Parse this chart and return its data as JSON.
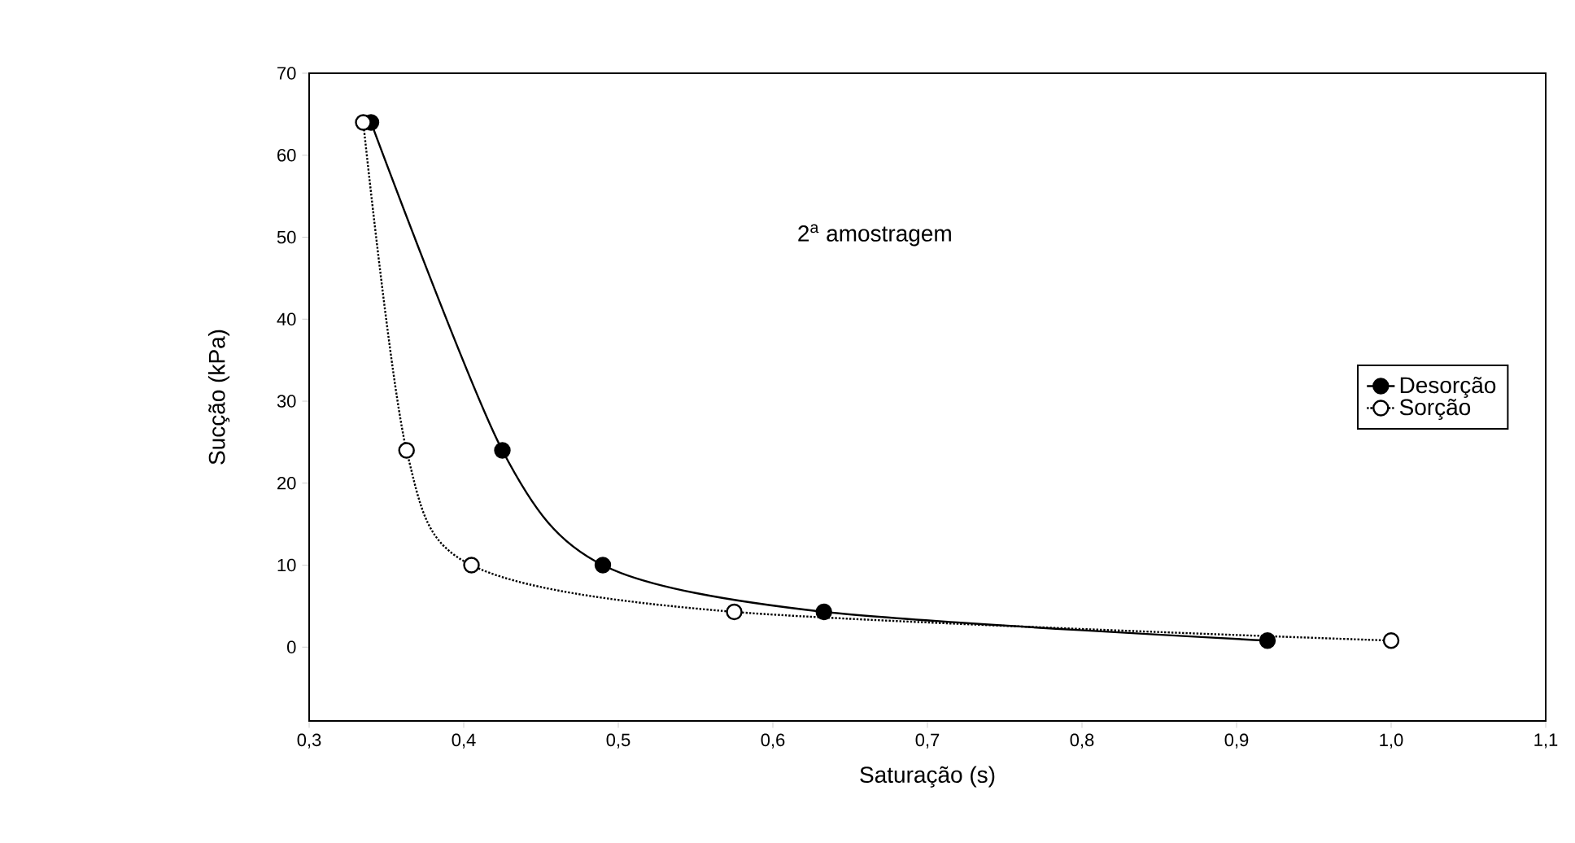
{
  "chart_data": {
    "type": "line",
    "xlabel": "Saturação (s)",
    "ylabel": "Sucção (kPa)",
    "annotations": [
      "2$^{a}$ amostragem"
    ],
    "xlim": [
      0.3,
      1.1
    ],
    "ylim": [
      -9,
      70
    ],
    "xticks": [
      {
        "value": 0.3,
        "label": "0,3"
      },
      {
        "value": 0.4,
        "label": "0,4"
      },
      {
        "value": 0.5,
        "label": "0,5"
      },
      {
        "value": 0.6,
        "label": "0,6"
      },
      {
        "value": 0.7,
        "label": "0,7"
      },
      {
        "value": 0.8,
        "label": "0,8"
      },
      {
        "value": 0.9,
        "label": "0,9"
      },
      {
        "value": 1.0,
        "label": "1,0"
      },
      {
        "value": 1.1,
        "label": "1,1"
      }
    ],
    "yticks": [
      0,
      10,
      20,
      30,
      40,
      50,
      60,
      70
    ],
    "grid": false,
    "legend": "right",
    "marker": "circle",
    "series": [
      {
        "name": "Desorção",
        "color": "#000000",
        "line_style": "solid",
        "x": [
          0.34,
          0.425,
          0.49,
          0.633,
          0.92
        ],
        "values": [
          64,
          24,
          10,
          4.3,
          0.8
        ]
      },
      {
        "name": "Sorção",
        "color": "#000000",
        "line_style": "dotted",
        "x": [
          0.335,
          0.363,
          0.405,
          0.575,
          1.0
        ],
        "values": [
          64,
          24,
          10,
          4.3,
          0.8
        ]
      }
    ]
  }
}
